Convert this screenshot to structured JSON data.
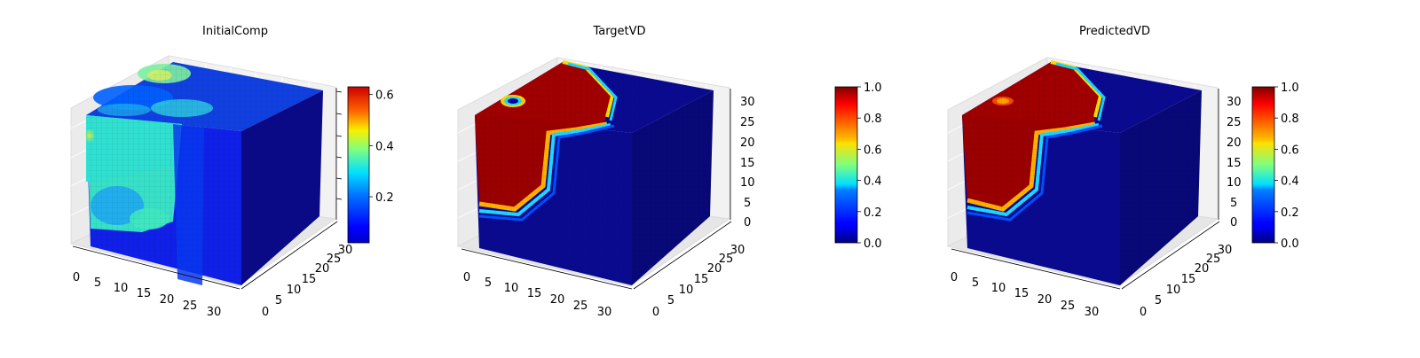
{
  "chart_data": [
    {
      "type": "voxel-3d",
      "title": "InitialComp",
      "x_ticks": [
        "0",
        "5",
        "10",
        "15",
        "20",
        "25",
        "30"
      ],
      "y_ticks": [
        "0",
        "5",
        "10",
        "15",
        "20",
        "25",
        "30"
      ],
      "z_ticks": [
        "",
        "",
        "",
        "",
        "",
        "",
        ""
      ],
      "axis_range": [
        0,
        32
      ],
      "colormap": "jet",
      "colorbar": {
        "min": 0.02,
        "max": 0.63,
        "ticks": [
          0.2,
          0.4,
          0.6
        ],
        "tick_labels": [
          "0.2",
          "0.4",
          "0.6"
        ]
      }
    },
    {
      "type": "voxel-3d",
      "title": "TargetVD",
      "x_ticks": [
        "0",
        "5",
        "10",
        "15",
        "20",
        "25",
        "30"
      ],
      "y_ticks": [
        "0",
        "5",
        "10",
        "15",
        "20",
        "25",
        "30"
      ],
      "z_ticks": [
        "0",
        "5",
        "10",
        "15",
        "20",
        "25",
        "30"
      ],
      "axis_range": [
        0,
        32
      ],
      "colormap": "jet",
      "colorbar": {
        "min": 0.0,
        "max": 1.0,
        "ticks": [
          0.0,
          0.2,
          0.4,
          0.6,
          0.8,
          1.0
        ],
        "tick_labels": [
          "0.0",
          "0.2",
          "0.4",
          "0.6",
          "0.8",
          "1.0"
        ]
      }
    },
    {
      "type": "voxel-3d",
      "title": "PredictedVD",
      "x_ticks": [
        "0",
        "5",
        "10",
        "15",
        "20",
        "25",
        "30"
      ],
      "y_ticks": [
        "0",
        "5",
        "10",
        "15",
        "20",
        "25",
        "30"
      ],
      "z_ticks": [
        "0",
        "5",
        "10",
        "15",
        "20",
        "25",
        "30"
      ],
      "axis_range": [
        0,
        32
      ],
      "colormap": "jet",
      "colorbar": {
        "min": 0.0,
        "max": 1.0,
        "ticks": [
          0.0,
          0.2,
          0.4,
          0.6,
          0.8,
          1.0
        ],
        "tick_labels": [
          "0.0",
          "0.2",
          "0.4",
          "0.6",
          "0.8",
          "1.0"
        ]
      }
    }
  ]
}
